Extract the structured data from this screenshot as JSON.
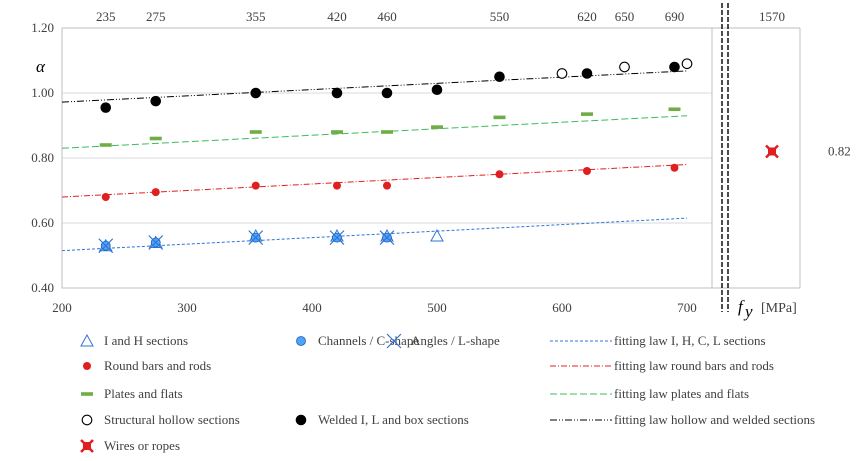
{
  "chart_data": {
    "type": "scatter",
    "ylabel": "α",
    "xlabel_symbol": "f",
    "xlabel_subscript": "y",
    "xlabel_unit": "[MPa]",
    "xlim": [
      200,
      720
    ],
    "ylim": [
      0.4,
      1.2
    ],
    "x_ticks": [
      "200",
      "300",
      "400",
      "500",
      "600",
      "700"
    ],
    "y_ticks": [
      "0.40",
      "0.60",
      "0.80",
      "1.00",
      "1.20"
    ],
    "top_ticks": [
      "235",
      "275",
      "355",
      "420",
      "460",
      "550",
      "620",
      "650",
      "690",
      "1570"
    ],
    "right_value_label": "0.82",
    "grid": "horizontal",
    "colors": {
      "blue": "#2e75d6",
      "red": "#e02020",
      "green": "#70ad47",
      "black": "#000000"
    },
    "series": [
      {
        "name": "I and H sections",
        "marker": "triangle",
        "points": [
          [
            235,
            0.53
          ],
          [
            275,
            0.54
          ],
          [
            355,
            0.56
          ],
          [
            420,
            0.56
          ],
          [
            460,
            0.56
          ],
          [
            500,
            0.56
          ]
        ]
      },
      {
        "name": "Channels / C-shape",
        "marker": "circle-blue",
        "points": [
          [
            235,
            0.53
          ],
          [
            275,
            0.54
          ],
          [
            355,
            0.555
          ],
          [
            420,
            0.555
          ],
          [
            460,
            0.555
          ]
        ]
      },
      {
        "name": "Angles / L-shape",
        "marker": "cross",
        "points": [
          [
            235,
            0.53
          ],
          [
            275,
            0.54
          ],
          [
            355,
            0.555
          ],
          [
            420,
            0.555
          ],
          [
            460,
            0.555
          ]
        ]
      },
      {
        "name": "Round bars and rods",
        "marker": "dot-red",
        "points": [
          [
            235,
            0.68
          ],
          [
            275,
            0.695
          ],
          [
            355,
            0.715
          ],
          [
            420,
            0.715
          ],
          [
            460,
            0.715
          ],
          [
            550,
            0.75
          ],
          [
            620,
            0.76
          ],
          [
            690,
            0.77
          ]
        ]
      },
      {
        "name": "Plates and flats",
        "marker": "dash-green",
        "points": [
          [
            235,
            0.84
          ],
          [
            275,
            0.86
          ],
          [
            355,
            0.88
          ],
          [
            420,
            0.88
          ],
          [
            460,
            0.88
          ],
          [
            500,
            0.895
          ],
          [
            550,
            0.925
          ],
          [
            620,
            0.935
          ],
          [
            690,
            0.95
          ]
        ]
      },
      {
        "name": "Structural hollow sections",
        "marker": "circle-open",
        "points": [
          [
            600,
            1.06
          ],
          [
            650,
            1.08
          ],
          [
            700,
            1.09
          ]
        ]
      },
      {
        "name": "Welded I, L and box sections",
        "marker": "dot-black",
        "points": [
          [
            235,
            0.955
          ],
          [
            275,
            0.975
          ],
          [
            355,
            1.0
          ],
          [
            420,
            1.0
          ],
          [
            460,
            1.0
          ],
          [
            500,
            1.01
          ],
          [
            550,
            1.05
          ],
          [
            620,
            1.06
          ],
          [
            690,
            1.08
          ]
        ]
      },
      {
        "name": "Wires or ropes",
        "marker": "star-red",
        "points": [
          [
            1570,
            0.82
          ]
        ]
      }
    ],
    "fits": [
      {
        "name": "fitting law I, H, C, L sections",
        "style": "blue-dash",
        "from": [
          200,
          0.515
        ],
        "to": [
          700,
          0.615
        ]
      },
      {
        "name": "fitting law round bars and rods",
        "style": "red-dashdot",
        "from": [
          200,
          0.68
        ],
        "to": [
          700,
          0.78
        ]
      },
      {
        "name": "fitting law plates and flats",
        "style": "green-longdash",
        "from": [
          200,
          0.83
        ],
        "to": [
          700,
          0.93
        ]
      },
      {
        "name": "fitting law hollow and welded sections",
        "style": "black-dashdotdot",
        "from": [
          200,
          0.972
        ],
        "to": [
          700,
          1.068
        ]
      }
    ],
    "legend": [
      [
        "I and H sections",
        "Channels / C-shape",
        "Angles / L-shape",
        "fitting law I, H, C, L sections"
      ],
      [
        "Round bars and rods",
        "fitting law round bars and rods"
      ],
      [
        "Plates and flats",
        "fitting law plates and flats"
      ],
      [
        "Structural hollow sections",
        "Welded I, L and box sections",
        "fitting law hollow and welded sections"
      ],
      [
        "Wires or ropes"
      ]
    ]
  }
}
